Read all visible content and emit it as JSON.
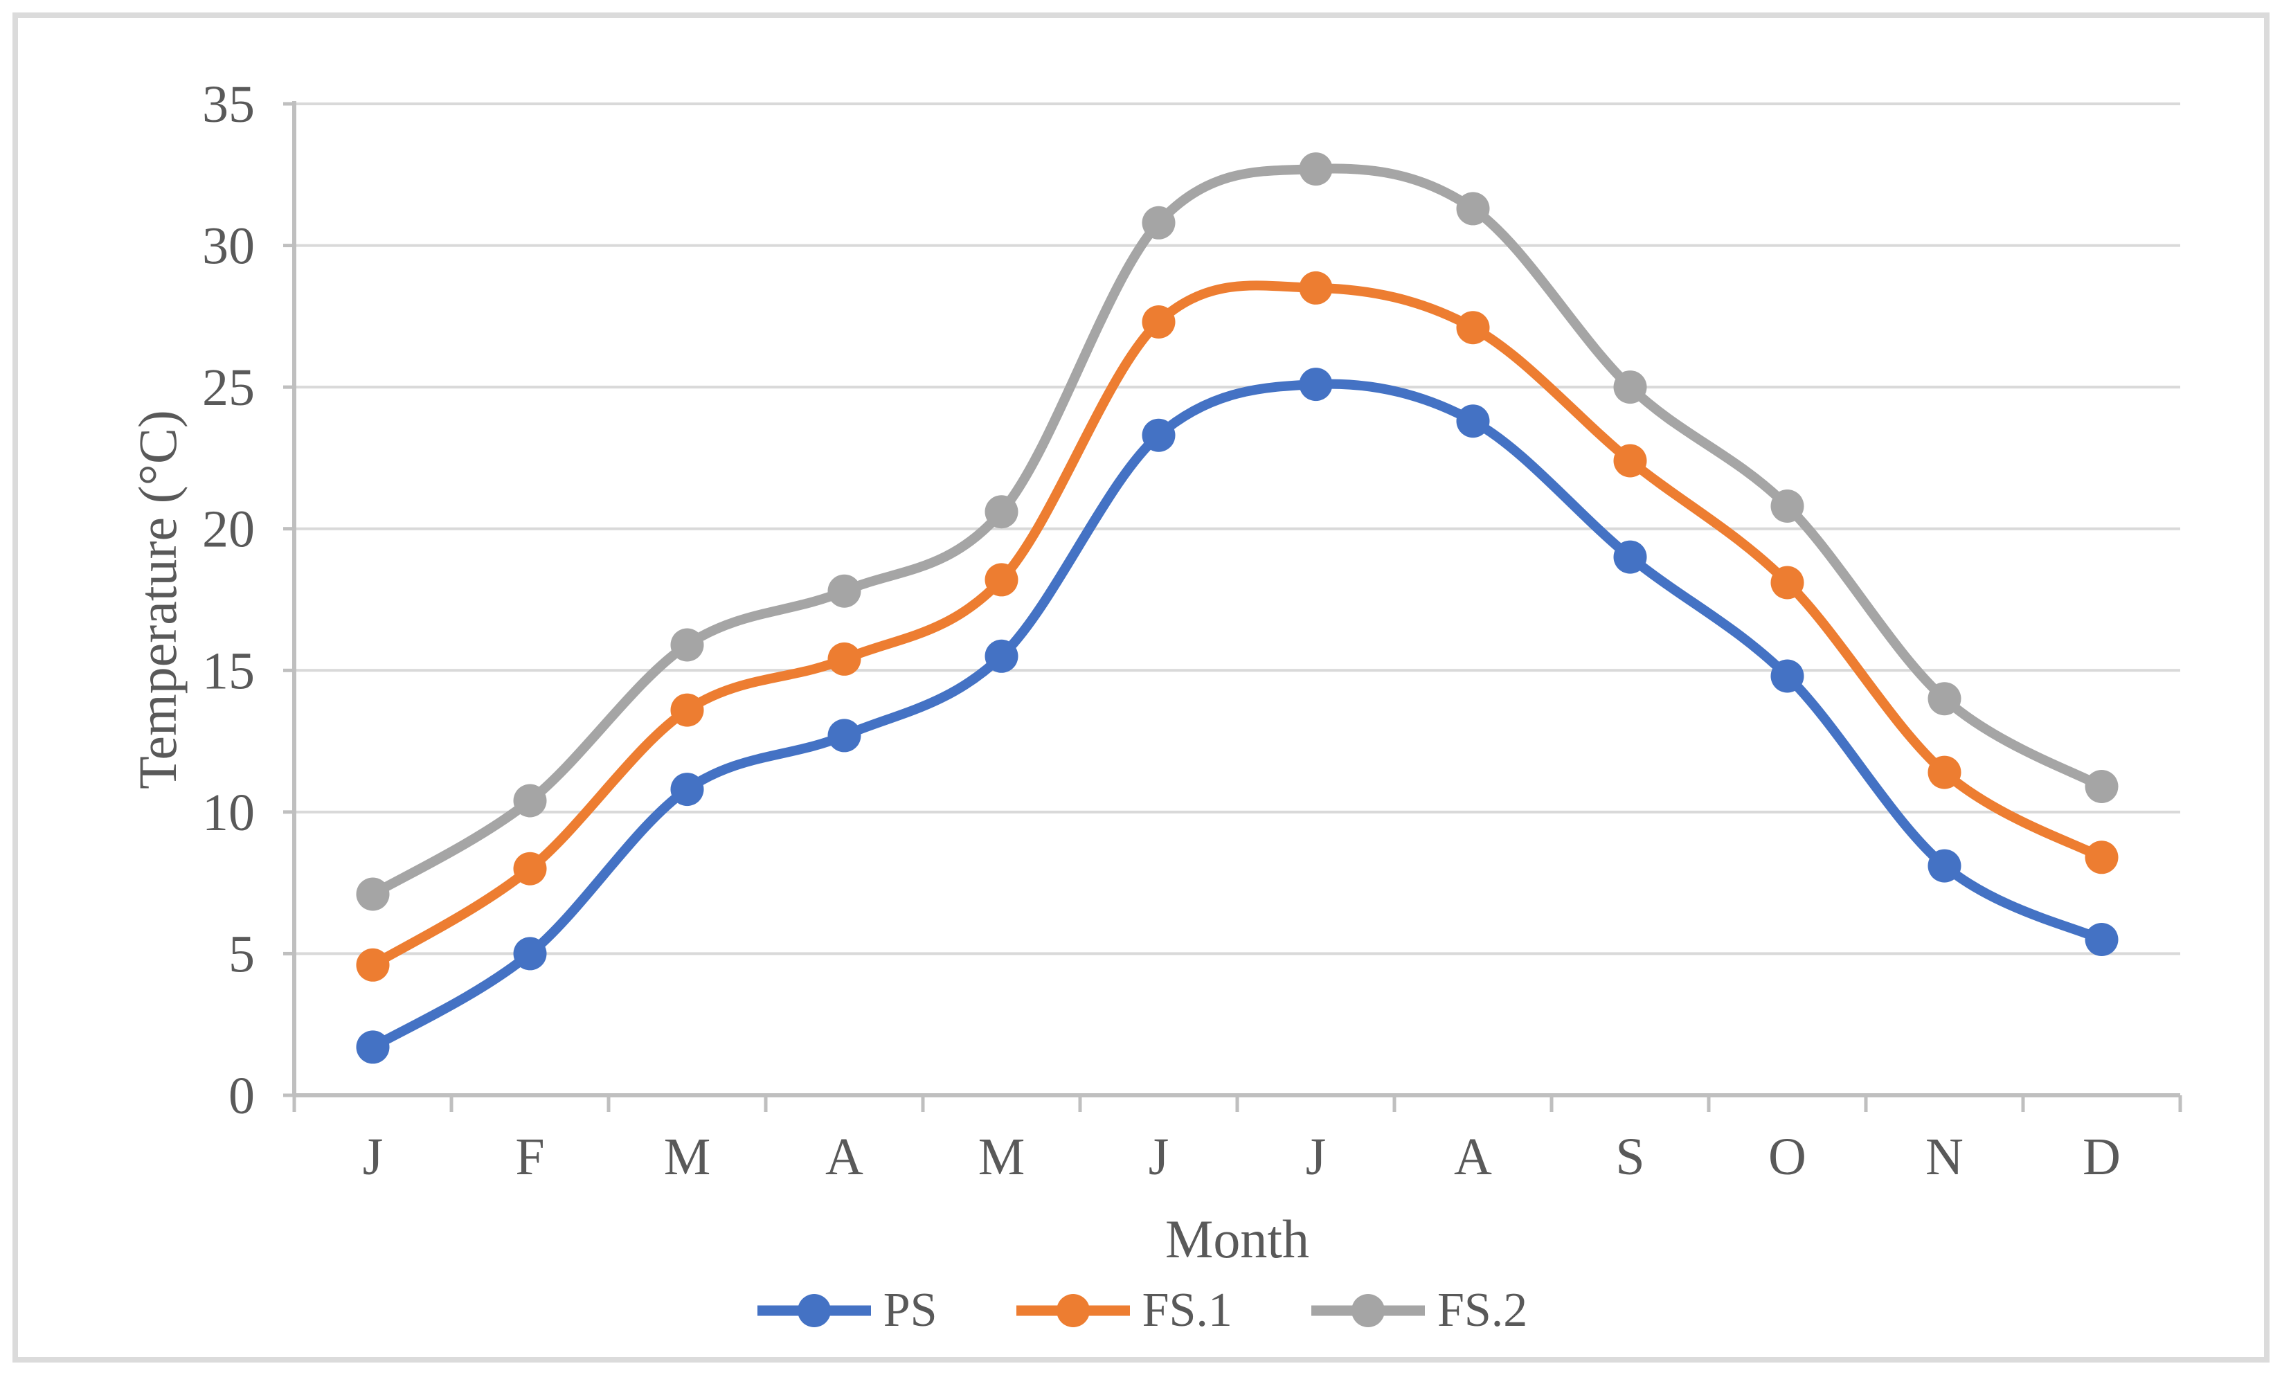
{
  "chart_data": {
    "type": "line",
    "title": "",
    "xlabel": "Month",
    "ylabel": "Temperature (°C)",
    "categories": [
      "J",
      "F",
      "M",
      "A",
      "M",
      "J",
      "J",
      "A",
      "S",
      "O",
      "N",
      "D"
    ],
    "yticks": [
      0,
      5,
      10,
      15,
      20,
      25,
      30,
      35
    ],
    "ylim": [
      0,
      35
    ],
    "grid": "horizontal",
    "line_style": "smooth",
    "marker": "circle",
    "legend_position": "bottom-center",
    "series": [
      {
        "name": "PS",
        "color": "#4472C4",
        "values": [
          1.7,
          5.0,
          10.8,
          12.7,
          15.5,
          23.3,
          25.1,
          23.8,
          19.0,
          14.8,
          8.1,
          5.5
        ]
      },
      {
        "name": "FS.1",
        "color": "#ED7D31",
        "values": [
          4.6,
          8.0,
          13.6,
          15.4,
          18.2,
          27.3,
          28.5,
          27.1,
          22.4,
          18.1,
          11.4,
          8.4
        ]
      },
      {
        "name": "FS.2",
        "color": "#A5A5A5",
        "values": [
          7.1,
          10.4,
          15.9,
          17.8,
          20.6,
          30.8,
          32.7,
          31.3,
          25.0,
          20.8,
          14.0,
          10.9
        ]
      }
    ]
  },
  "colors": {
    "background": "#FFFFFF",
    "frame_border": "#DBDBDB",
    "gridline": "#D9D9D9",
    "axis_line": "#BFBFBF",
    "text": "#595959"
  }
}
